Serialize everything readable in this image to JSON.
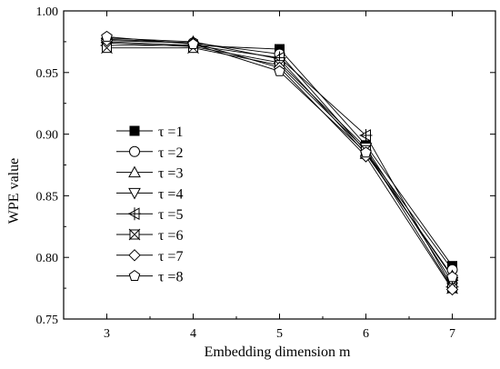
{
  "chart_data": {
    "type": "line",
    "title": "",
    "xlabel": "Embedding dimension m",
    "ylabel": "WPE value",
    "x": [
      3,
      4,
      5,
      6,
      7
    ],
    "xlim": [
      2.5,
      7.5
    ],
    "ylim": [
      0.75,
      1.0
    ],
    "xticks": [
      "3",
      "4",
      "5",
      "6",
      "7"
    ],
    "yticks": [
      "0.75",
      "0.80",
      "0.85",
      "0.90",
      "0.95",
      "1.00"
    ],
    "grid": false,
    "legend_position": "middle-left",
    "series": [
      {
        "name": "τ =1",
        "marker": "filled-square",
        "values": [
          0.975,
          0.972,
          0.969,
          0.891,
          0.793
        ]
      },
      {
        "name": "τ =2",
        "marker": "circle",
        "values": [
          0.977,
          0.974,
          0.965,
          0.886,
          0.79
        ]
      },
      {
        "name": "τ =3",
        "marker": "triangle-up",
        "values": [
          0.978,
          0.975,
          0.961,
          0.884,
          0.785
        ]
      },
      {
        "name": "τ =4",
        "marker": "triangle-down",
        "values": [
          0.974,
          0.971,
          0.958,
          0.889,
          0.78
        ]
      },
      {
        "name": "τ =5",
        "marker": "left-triangle-cross",
        "values": [
          0.972,
          0.972,
          0.962,
          0.899,
          0.776
        ]
      },
      {
        "name": "τ =6",
        "marker": "square-x",
        "values": [
          0.97,
          0.97,
          0.956,
          0.887,
          0.775
        ]
      },
      {
        "name": "τ =7",
        "marker": "diamond",
        "values": [
          0.976,
          0.974,
          0.954,
          0.882,
          0.774
        ]
      },
      {
        "name": "τ =8",
        "marker": "pentagon",
        "values": [
          0.979,
          0.973,
          0.951,
          0.885,
          0.784
        ]
      }
    ]
  }
}
